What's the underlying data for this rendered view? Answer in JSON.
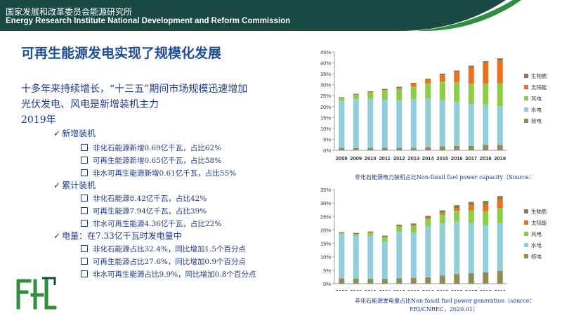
{
  "header": {
    "org_cn": "国家发展和改革委员会能源研究所",
    "org_en": "Energy Research Institute National Development and Reform Commission"
  },
  "title": "可再生能源发电实现了规模化发展",
  "lead": {
    "line1": "十多年来持续增长，“十三五”期间市场规模迅速增加",
    "line2": "光伏发电、风电是新增装机主力",
    "year": "2019年"
  },
  "groups": [
    {
      "label": "新增装机",
      "items": [
        "非化石能源新增0.69亿千瓦，占比62%",
        "可再生能源新增0.65亿千瓦，占比58%",
        "非水可再生能源新增0.61亿千瓦，占比55%"
      ]
    },
    {
      "label": "累计装机",
      "items": [
        "非化石能源8.42亿千瓦，占比42%",
        "可再生能源7.94亿千瓦，占比39%",
        "非水可再生能源4.36亿千瓦，占比22%"
      ]
    },
    {
      "label": "电量：在7.33亿千瓦时发电量中",
      "items": [
        "非化石能源占比32.4%，同比增加1.5个百分点",
        "可再生能源占比27.6%，同比增加0.9个百分点",
        "非水可再生能源占比9.9%，同比增加0.8个百分点"
      ]
    }
  ],
  "captions": {
    "capacity": "非化石能源电力装机占比Non-fossil fuel power capacity（Source：",
    "generation_1": "非化石能源发电量占比Non-fossil fuel power generation（source：",
    "generation_2": "ERI/CNREC，2020.01）"
  },
  "colors": {
    "biomass": "#8b7d4b",
    "solar": "#e8731c",
    "wind": "#8fcc46",
    "hydro": "#92cddc",
    "nuclear": "#938b55",
    "header": "#1b4a45",
    "accent": "#2f8f3e",
    "title": "#1e4d9c",
    "text": "#1e3a8a"
  },
  "chart_data": [
    {
      "type": "bar",
      "stacked": true,
      "categories": [
        "2008",
        "2009",
        "2010",
        "2011",
        "2012",
        "2013",
        "2014",
        "2015",
        "2016",
        "2017",
        "2018",
        "2019"
      ],
      "ylim": [
        0,
        45
      ],
      "yticks": [
        "0%",
        "5%",
        "10%",
        "15%",
        "20%",
        "25%",
        "30%",
        "35%",
        "40%",
        "45%"
      ],
      "grid": false,
      "legend": "right",
      "series": [
        {
          "name": "核电",
          "key": "nuclear",
          "values": [
            1.1,
            1.0,
            1.1,
            1.1,
            1.1,
            1.2,
            1.4,
            1.8,
            2.0,
            2.0,
            2.4,
            2.4
          ]
        },
        {
          "name": "水电",
          "key": "hydro",
          "values": [
            21.6,
            22.5,
            22.4,
            22.0,
            21.8,
            22.2,
            22.2,
            21.2,
            20.2,
            19.2,
            18.5,
            17.8
          ]
        },
        {
          "name": "风电",
          "key": "wind",
          "values": [
            1.3,
            2.0,
            3.0,
            4.3,
            5.2,
            5.8,
            7.0,
            8.4,
            9.0,
            9.3,
            9.7,
            10.5
          ]
        },
        {
          "name": "太阳能",
          "key": "solar",
          "values": [
            0.0,
            0.0,
            0.1,
            0.2,
            0.5,
            1.2,
            1.6,
            3.0,
            4.6,
            7.4,
            9.3,
            10.3
          ]
        },
        {
          "name": "生物质",
          "key": "biomass",
          "values": [
            0.3,
            0.4,
            0.4,
            0.5,
            0.5,
            0.5,
            0.6,
            0.7,
            0.7,
            0.8,
            0.9,
            1.1
          ]
        }
      ]
    },
    {
      "type": "bar",
      "stacked": true,
      "categories": [
        "2008",
        "2009",
        "2010",
        "2011",
        "2012",
        "2013",
        "2014",
        "2015",
        "2016",
        "2017",
        "2018",
        "2019"
      ],
      "ylim": [
        0,
        35
      ],
      "yticks": [
        "0%",
        "5%",
        "10%",
        "15%",
        "20%",
        "25%",
        "30%",
        "35%"
      ],
      "grid": false,
      "legend": "right",
      "series": [
        {
          "name": "核电",
          "key": "nuclear",
          "values": [
            2.0,
            1.9,
            1.8,
            1.8,
            2.0,
            2.1,
            2.4,
            3.0,
            3.6,
            3.9,
            4.2,
            4.8
          ]
        },
        {
          "name": "水电",
          "key": "hydro",
          "values": [
            16.5,
            15.8,
            16.1,
            14.0,
            17.3,
            16.9,
            18.9,
            19.4,
            19.5,
            18.6,
            17.6,
            17.8
          ]
        },
        {
          "name": "风电",
          "key": "wind",
          "values": [
            0.4,
            0.8,
            1.1,
            1.5,
            2.0,
            2.6,
            2.8,
            3.3,
            4.0,
            4.8,
            5.2,
            5.5
          ]
        },
        {
          "name": "太阳能",
          "key": "solar",
          "values": [
            0.0,
            0.0,
            0.0,
            0.1,
            0.1,
            0.2,
            0.4,
            0.7,
            1.1,
            1.9,
            2.5,
            3.1
          ]
        },
        {
          "name": "生物质",
          "key": "biomass",
          "values": [
            0.3,
            0.4,
            0.4,
            0.5,
            0.6,
            0.6,
            0.7,
            0.9,
            1.0,
            1.2,
            1.3,
            1.4
          ]
        }
      ]
    }
  ]
}
